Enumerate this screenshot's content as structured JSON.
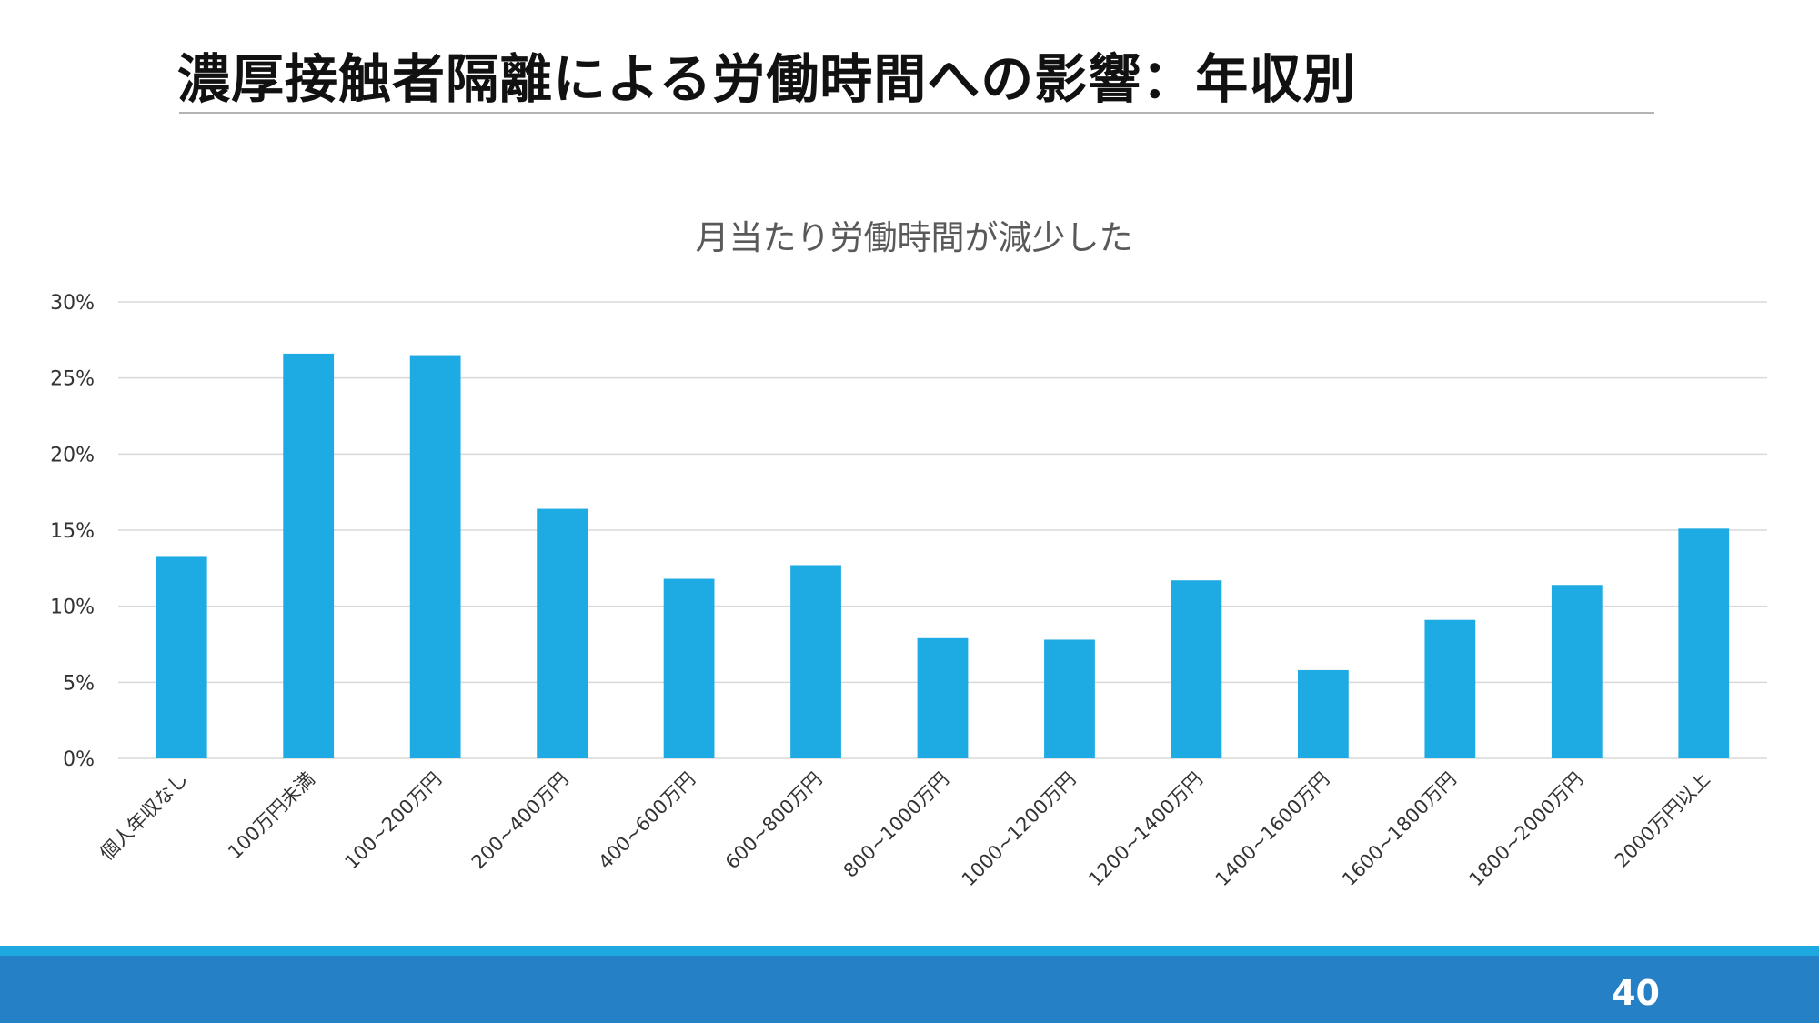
{
  "slide": {
    "title": "濃厚接触者隔離による労働時間への影響：年収別",
    "page_number": "40"
  },
  "colors": {
    "bar": "#1eaae2",
    "footer": "#2580c6",
    "footer_accent": "#1ea8e0",
    "gridline": "#d9d9d9"
  },
  "chart_data": {
    "type": "bar",
    "title": "月当たり労働時間が減少した",
    "categories": [
      "個人年収なし",
      "100万円未満",
      "100~200万円",
      "200~400万円",
      "400~600万円",
      "600~800万円",
      "800~1000万円",
      "1000~1200万円",
      "1200~1400万円",
      "1400~1600万円",
      "1600~1800万円",
      "1800~2000万円",
      "2000万円以上"
    ],
    "values": [
      13.3,
      26.6,
      26.5,
      16.4,
      11.8,
      12.7,
      7.9,
      7.8,
      11.7,
      5.8,
      9.1,
      11.4,
      15.1
    ],
    "yticks": [
      "0%",
      "5%",
      "10%",
      "15%",
      "20%",
      "25%",
      "30%"
    ],
    "ylim": [
      0,
      30
    ],
    "grid": true,
    "legend": "none"
  }
}
